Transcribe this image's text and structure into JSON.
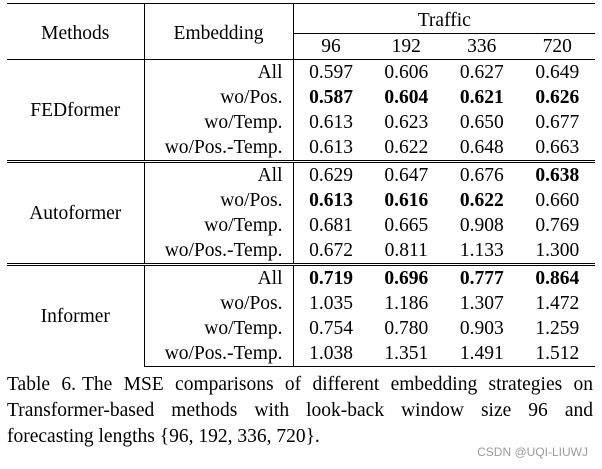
{
  "table": {
    "header": {
      "methods": "Methods",
      "embedding": "Embedding",
      "dataset": "Traffic",
      "horizons": [
        "96",
        "192",
        "336",
        "720"
      ]
    },
    "groups": [
      {
        "method": "FEDformer",
        "rows": [
          {
            "embedding": "All",
            "values": [
              "0.597",
              "0.606",
              "0.627",
              "0.649"
            ],
            "bold": [
              false,
              false,
              false,
              false
            ]
          },
          {
            "embedding": "wo/Pos.",
            "values": [
              "0.587",
              "0.604",
              "0.621",
              "0.626"
            ],
            "bold": [
              true,
              true,
              true,
              true
            ]
          },
          {
            "embedding": "wo/Temp.",
            "values": [
              "0.613",
              "0.623",
              "0.650",
              "0.677"
            ],
            "bold": [
              false,
              false,
              false,
              false
            ]
          },
          {
            "embedding": "wo/Pos.-Temp.",
            "values": [
              "0.613",
              "0.622",
              "0.648",
              "0.663"
            ],
            "bold": [
              false,
              false,
              false,
              false
            ]
          }
        ]
      },
      {
        "method": "Autoformer",
        "rows": [
          {
            "embedding": "All",
            "values": [
              "0.629",
              "0.647",
              "0.676",
              "0.638"
            ],
            "bold": [
              false,
              false,
              false,
              true
            ]
          },
          {
            "embedding": "wo/Pos.",
            "values": [
              "0.613",
              "0.616",
              "0.622",
              "0.660"
            ],
            "bold": [
              true,
              true,
              true,
              false
            ]
          },
          {
            "embedding": "wo/Temp.",
            "values": [
              "0.681",
              "0.665",
              "0.908",
              "0.769"
            ],
            "bold": [
              false,
              false,
              false,
              false
            ]
          },
          {
            "embedding": "wo/Pos.-Temp.",
            "values": [
              "0.672",
              "0.811",
              "1.133",
              "1.300"
            ],
            "bold": [
              false,
              false,
              false,
              false
            ]
          }
        ]
      },
      {
        "method": "Informer",
        "rows": [
          {
            "embedding": "All",
            "values": [
              "0.719",
              "0.696",
              "0.777",
              "0.864"
            ],
            "bold": [
              true,
              true,
              true,
              true
            ]
          },
          {
            "embedding": "wo/Pos.",
            "values": [
              "1.035",
              "1.186",
              "1.307",
              "1.472"
            ],
            "bold": [
              false,
              false,
              false,
              false
            ]
          },
          {
            "embedding": "wo/Temp.",
            "values": [
              "0.754",
              "0.780",
              "0.903",
              "1.259"
            ],
            "bold": [
              false,
              false,
              false,
              false
            ]
          },
          {
            "embedding": "wo/Pos.-Temp.",
            "values": [
              "1.038",
              "1.351",
              "1.491",
              "1.512"
            ],
            "bold": [
              false,
              false,
              false,
              false
            ]
          }
        ]
      }
    ]
  },
  "caption": {
    "label": "Table 6.",
    "text": "The MSE comparisons of different embedding strategies on Transformer-based methods with look-back window size 96 and forecasting lengths {96, 192, 336, 720}."
  },
  "watermark": "CSDN @UQI-LIUWJ"
}
